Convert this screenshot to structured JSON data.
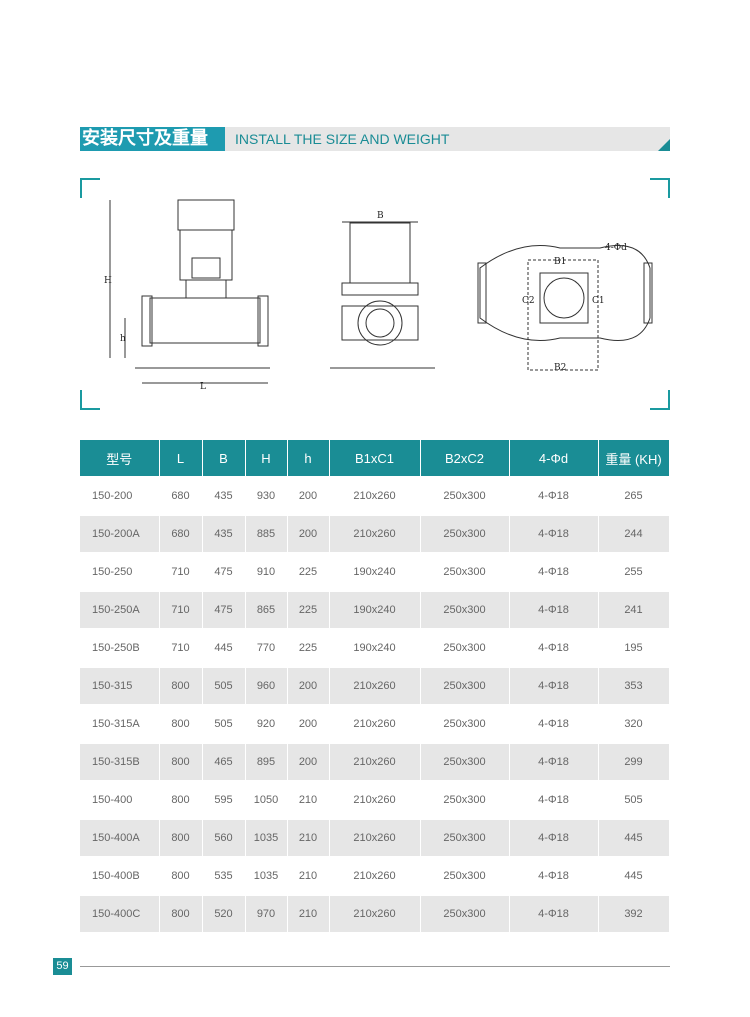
{
  "header": {
    "title_cn": "安装尺寸及重量",
    "title_en": "INSTALL THE SIZE AND WEIGHT"
  },
  "drawing": {
    "labels": {
      "H": "H",
      "h": "h",
      "L": "L",
      "B": "B",
      "B1": "B1",
      "B2": "B2",
      "C1": "C1",
      "C2": "C2",
      "holes": "4-Φd"
    }
  },
  "table": {
    "headers": [
      "型号",
      "L",
      "B",
      "H",
      "h",
      "B1xC1",
      "B2xC2",
      "4-Φd",
      "重量 (KH)"
    ],
    "rows": [
      [
        "150-200",
        "680",
        "435",
        "930",
        "200",
        "210x260",
        "250x300",
        "4-Φ18",
        "265"
      ],
      [
        "150-200A",
        "680",
        "435",
        "885",
        "200",
        "210x260",
        "250x300",
        "4-Φ18",
        "244"
      ],
      [
        "150-250",
        "710",
        "475",
        "910",
        "225",
        "190x240",
        "250x300",
        "4-Φ18",
        "255"
      ],
      [
        "150-250A",
        "710",
        "475",
        "865",
        "225",
        "190x240",
        "250x300",
        "4-Φ18",
        "241"
      ],
      [
        "150-250B",
        "710",
        "445",
        "770",
        "225",
        "190x240",
        "250x300",
        "4-Φ18",
        "195"
      ],
      [
        "150-315",
        "800",
        "505",
        "960",
        "200",
        "210x260",
        "250x300",
        "4-Φ18",
        "353"
      ],
      [
        "150-315A",
        "800",
        "505",
        "920",
        "200",
        "210x260",
        "250x300",
        "4-Φ18",
        "320"
      ],
      [
        "150-315B",
        "800",
        "465",
        "895",
        "200",
        "210x260",
        "250x300",
        "4-Φ18",
        "299"
      ],
      [
        "150-400",
        "800",
        "595",
        "1050",
        "210",
        "210x260",
        "250x300",
        "4-Φ18",
        "505"
      ],
      [
        "150-400A",
        "800",
        "560",
        "1035",
        "210",
        "210x260",
        "250x300",
        "4-Φ18",
        "445"
      ],
      [
        "150-400B",
        "800",
        "535",
        "1035",
        "210",
        "210x260",
        "250x300",
        "4-Φ18",
        "445"
      ],
      [
        "150-400C",
        "800",
        "520",
        "970",
        "210",
        "210x260",
        "250x300",
        "4-Φ18",
        "392"
      ]
    ]
  },
  "footer": {
    "page_number": "59"
  },
  "colors": {
    "accent": "#1a8d95",
    "title_block": "#1e9bb0",
    "row_alt": "#e6e6e6"
  }
}
